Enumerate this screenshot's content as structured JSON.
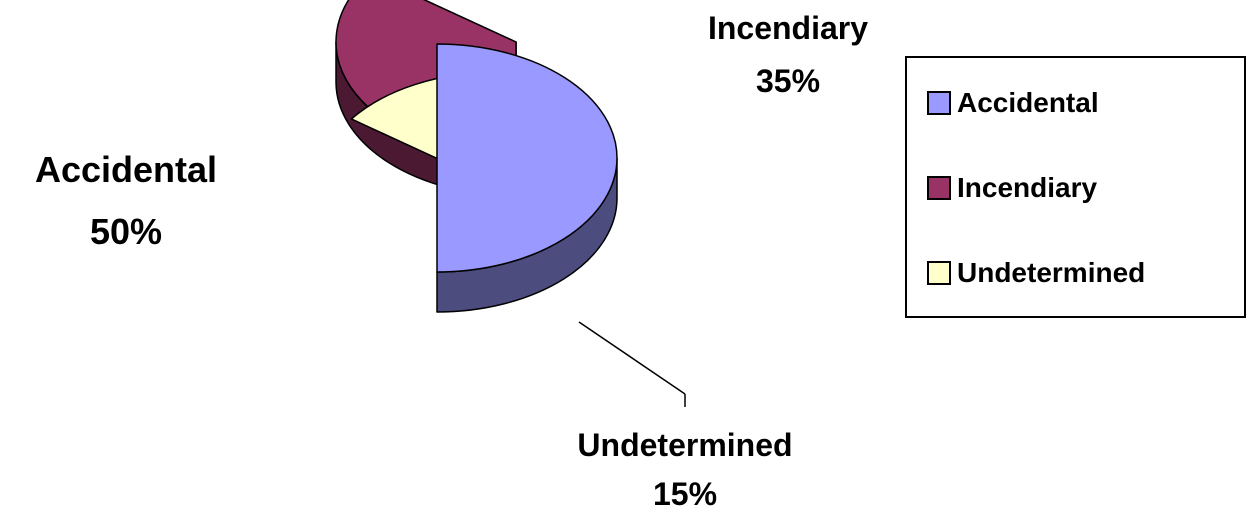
{
  "chart_data": {
    "type": "pie",
    "slices": [
      {
        "label": "Accidental",
        "value": 50,
        "percent_label": "50%",
        "color": "#9999FF",
        "side_color": "#4C4C7F"
      },
      {
        "label": "Incendiary",
        "value": 35,
        "percent_label": "35%",
        "color": "#993366",
        "side_color": "#4C1933"
      },
      {
        "label": "Undetermined",
        "value": 15,
        "percent_label": "15%",
        "color": "#FFFFCC",
        "side_color": "#7F7F66"
      }
    ],
    "legend": {
      "placement": "right",
      "entries": [
        "Accidental",
        "Incendiary",
        "Undetermined"
      ]
    },
    "style": "3d-exploded"
  }
}
